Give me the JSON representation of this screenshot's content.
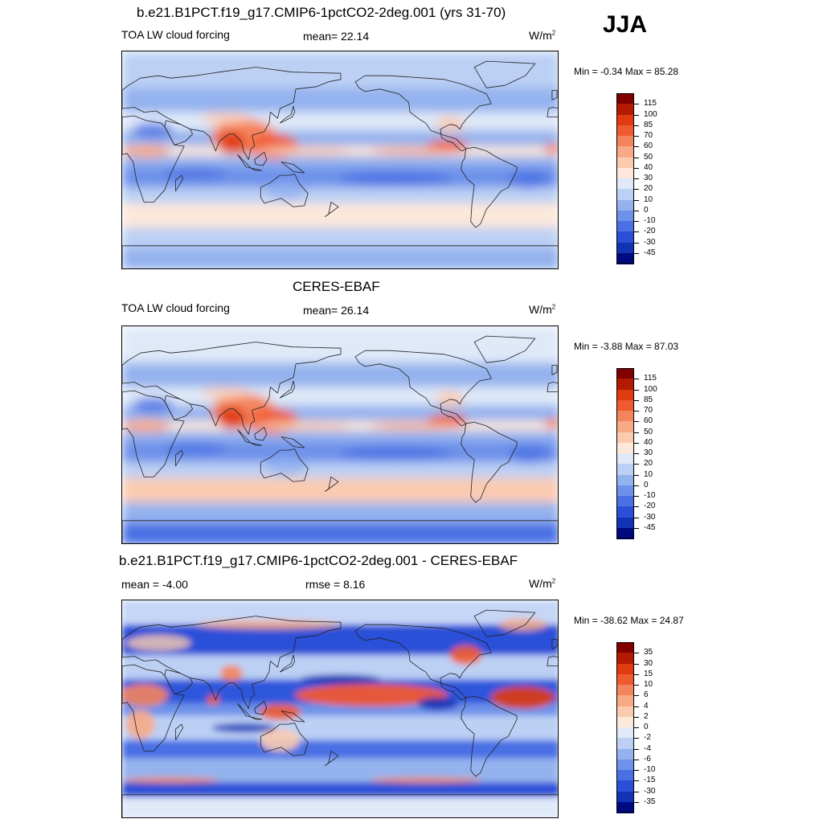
{
  "season": "JJA",
  "panels": [
    {
      "id": "model",
      "title": "b.e21.B1PCT.f19_g17.CMIP6-1pctCO2-2deg.001 (yrs 31-70)",
      "left_label": "TOA LW cloud forcing",
      "center_label": "mean=  22.14",
      "units_base": "W/m",
      "units_sup": "2",
      "minmax": "Min =  -0.34 Max =  85.28",
      "colorbar": {
        "labels": [
          "115",
          "100",
          "85",
          "70",
          "60",
          "50",
          "40",
          "30",
          "20",
          "10",
          "0",
          "-10",
          "-20",
          "-30",
          "-45"
        ],
        "colors": [
          "#800000",
          "#b31a00",
          "#e03a10",
          "#f05a30",
          "#f4845c",
          "#f8aa86",
          "#fbcbb0",
          "#fde8da",
          "#dfe9f8",
          "#bcd0f4",
          "#94b2ee",
          "#6e92ea",
          "#4a70e4",
          "#2a4fd8",
          "#1432b4",
          "#000a80"
        ]
      }
    },
    {
      "id": "obs",
      "title": "CERES-EBAF",
      "left_label": "TOA LW cloud forcing",
      "center_label": "mean=  26.14",
      "units_base": "W/m",
      "units_sup": "2",
      "minmax": "Min =  -3.88 Max =  87.03",
      "colorbar": {
        "labels": [
          "115",
          "100",
          "85",
          "70",
          "60",
          "50",
          "40",
          "30",
          "20",
          "10",
          "0",
          "-10",
          "-20",
          "-30",
          "-45"
        ],
        "colors": [
          "#800000",
          "#b31a00",
          "#e03a10",
          "#f05a30",
          "#f4845c",
          "#f8aa86",
          "#fbcbb0",
          "#fde8da",
          "#dfe9f8",
          "#bcd0f4",
          "#94b2ee",
          "#6e92ea",
          "#4a70e4",
          "#2a4fd8",
          "#1432b4",
          "#000a80"
        ]
      }
    },
    {
      "id": "diff",
      "title": "b.e21.B1PCT.f19_g17.CMIP6-1pctCO2-2deg.001 - CERES-EBAF",
      "left_label": "mean =  -4.00",
      "center_label": "rmse =   8.16",
      "units_base": "W/m",
      "units_sup": "2",
      "minmax": "Min = -38.62 Max =  24.87",
      "colorbar": {
        "labels": [
          "35",
          "30",
          "15",
          "10",
          "6",
          "4",
          "2",
          "0",
          "-2",
          "-4",
          "-6",
          "-10",
          "-15",
          "-30",
          "-35"
        ],
        "colors": [
          "#800000",
          "#b31a00",
          "#e03a10",
          "#f05a30",
          "#f4845c",
          "#f8aa86",
          "#fbcbb0",
          "#fde8da",
          "#dfe9f8",
          "#bcd0f4",
          "#94b2ee",
          "#6e92ea",
          "#4a70e4",
          "#2a4fd8",
          "#1432b4",
          "#000a80"
        ]
      }
    }
  ]
}
